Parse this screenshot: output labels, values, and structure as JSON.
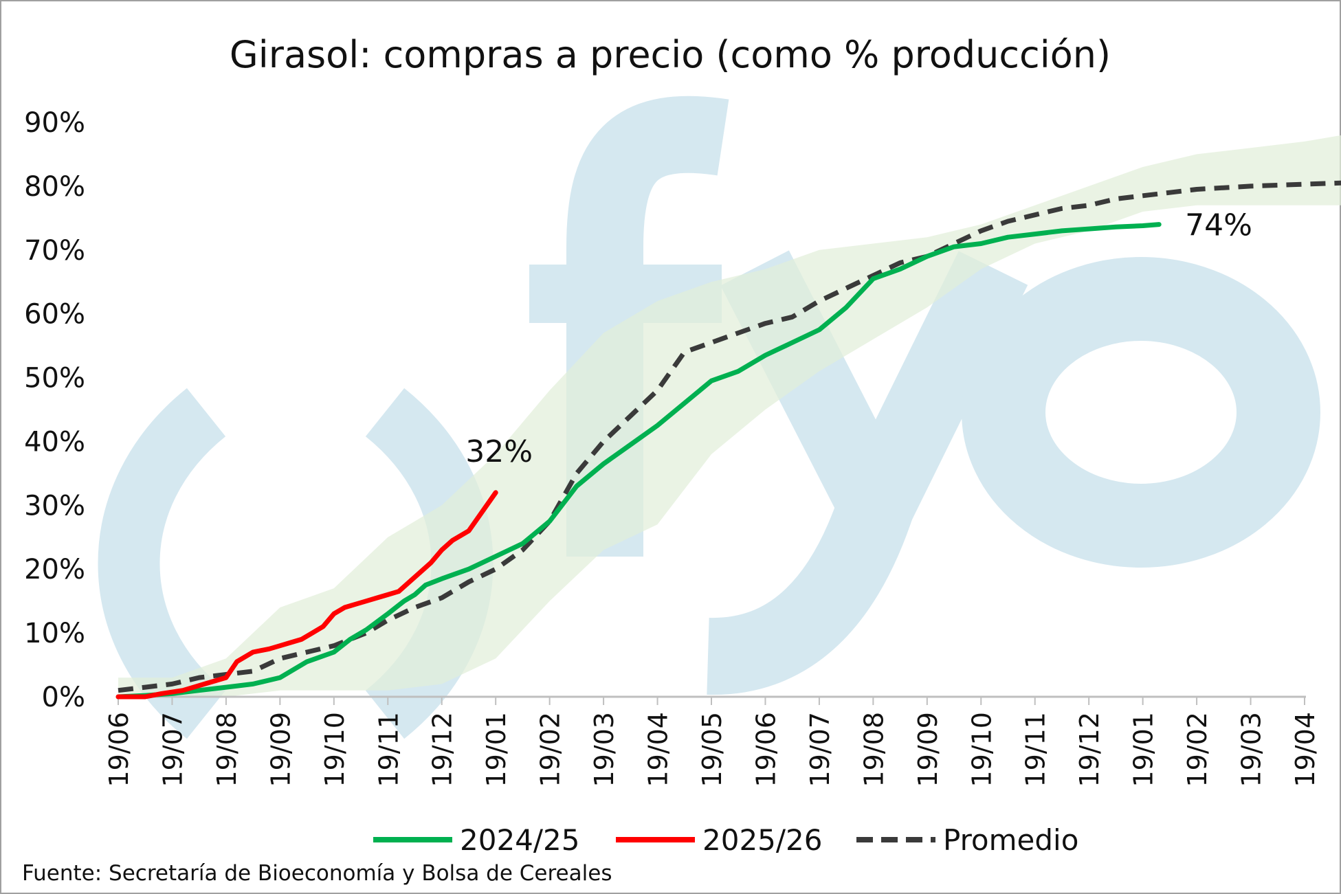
{
  "chart_data": {
    "type": "line",
    "title": "Girasol: compras a precio (como % producción)",
    "watermark": "fyo",
    "source": "Fuente: Secretaría de Bioeconomía y Bolsa de Cereales",
    "ylim": [
      0,
      90
    ],
    "y_ticks": [
      "0%",
      "10%",
      "20%",
      "30%",
      "40%",
      "50%",
      "60%",
      "70%",
      "80%",
      "90%"
    ],
    "x_ticks": [
      "19/06",
      "19/07",
      "19/08",
      "19/09",
      "19/10",
      "19/11",
      "19/12",
      "19/01",
      "19/02",
      "19/03",
      "19/04",
      "19/05",
      "19/06",
      "19/07",
      "19/08",
      "19/09",
      "19/10",
      "19/11",
      "19/12",
      "19/01",
      "19/02",
      "19/03",
      "19/04"
    ],
    "grid": false,
    "legend_position": "bottom",
    "colors": {
      "series_2024_25": "#00b050",
      "series_2025_26": "#ff0000",
      "series_promedio": "#3a3a3a",
      "band": "#e2efd9",
      "watermark": "#d5e8f0"
    },
    "series": [
      {
        "name": "2024/25",
        "style": "solid",
        "x": [
          0,
          0.5,
          1,
          1.5,
          2,
          2.5,
          3,
          3.5,
          4,
          4.3,
          4.6,
          5,
          5.3,
          5.5,
          5.7,
          6,
          6.5,
          7,
          7.5,
          8,
          8.5,
          9,
          9.5,
          10,
          10.5,
          11,
          11.5,
          12,
          12.5,
          13,
          13.5,
          14,
          14.5,
          15,
          15.5,
          16,
          16.5,
          17,
          17.5,
          18,
          18.5,
          19,
          19.3
        ],
        "values": [
          0,
          0.2,
          0.5,
          1.0,
          1.5,
          2.0,
          3.0,
          5.5,
          7.0,
          9.0,
          10.5,
          13.0,
          15.0,
          16.0,
          17.5,
          18.5,
          20.0,
          22.0,
          24.0,
          27.5,
          33.0,
          36.5,
          39.5,
          42.5,
          46.0,
          49.5,
          51.0,
          53.5,
          55.5,
          57.5,
          61.0,
          65.5,
          67.0,
          69.0,
          70.5,
          71.0,
          72.0,
          72.5,
          73.0,
          73.3,
          73.6,
          73.8,
          74.0
        ]
      },
      {
        "name": "2025/26",
        "style": "solid",
        "x": [
          0,
          0.5,
          0.8,
          1.2,
          1.6,
          2.0,
          2.2,
          2.5,
          2.8,
          3.0,
          3.2,
          3.4,
          3.6,
          3.8,
          4.0,
          4.2,
          4.4,
          4.6,
          4.8,
          5.0,
          5.2,
          5.4,
          5.6,
          5.8,
          6.0,
          6.2,
          6.5,
          7.0
        ],
        "values": [
          0,
          0,
          0.5,
          1.0,
          2.0,
          3.0,
          5.5,
          7.0,
          7.5,
          8.0,
          8.5,
          9.0,
          10.0,
          11.0,
          13.0,
          14.0,
          14.5,
          15.0,
          15.5,
          16.0,
          16.5,
          18.0,
          19.5,
          21.0,
          23.0,
          24.5,
          26.0,
          32.0
        ]
      },
      {
        "name": "Promedio",
        "style": "dashed",
        "x": [
          0,
          0.5,
          1,
          1.5,
          2,
          2.5,
          3,
          3.5,
          4,
          4.3,
          4.6,
          5,
          5.5,
          6,
          6.5,
          7,
          7.5,
          8,
          8.5,
          9,
          9.5,
          10,
          10.5,
          11,
          11.5,
          12,
          12.5,
          13,
          13.5,
          14,
          14.5,
          15,
          15.5,
          16,
          16.5,
          17,
          17.5,
          18,
          18.5,
          19,
          19.5,
          20,
          21,
          22,
          22.7
        ],
        "values": [
          1.0,
          1.5,
          2.0,
          3.0,
          3.5,
          4.0,
          6.0,
          7.0,
          8.0,
          9.0,
          10.0,
          12.0,
          14.0,
          15.5,
          18.0,
          20.0,
          23.0,
          27.5,
          35.0,
          40.0,
          44.0,
          48.0,
          54.0,
          55.5,
          57.0,
          58.5,
          59.5,
          62.0,
          64.0,
          66.0,
          68.0,
          69.0,
          71.0,
          73.0,
          74.5,
          75.5,
          76.5,
          77.0,
          78.0,
          78.5,
          79.0,
          79.5,
          80.0,
          80.3,
          80.5
        ]
      }
    ],
    "band": {
      "x": [
        0,
        1,
        2,
        3,
        4,
        5,
        6,
        7,
        8,
        9,
        10,
        11,
        12,
        13,
        14,
        15,
        16,
        17,
        18,
        19,
        20,
        21,
        22,
        22.7
      ],
      "low": [
        0,
        0,
        0,
        1,
        1,
        1,
        2,
        6,
        15,
        23,
        27,
        38,
        45,
        51,
        56,
        61,
        67,
        71,
        73,
        76,
        77,
        77,
        77,
        77
      ],
      "high": [
        3,
        3,
        6,
        14,
        17,
        25,
        30,
        38,
        48,
        57,
        62,
        65,
        67,
        70,
        71,
        72,
        74,
        77,
        80,
        83,
        85,
        86,
        87,
        88
      ]
    },
    "end_labels": [
      {
        "series": "2025/26",
        "text": "32%"
      },
      {
        "series": "2024/25",
        "text": "74%"
      }
    ]
  }
}
